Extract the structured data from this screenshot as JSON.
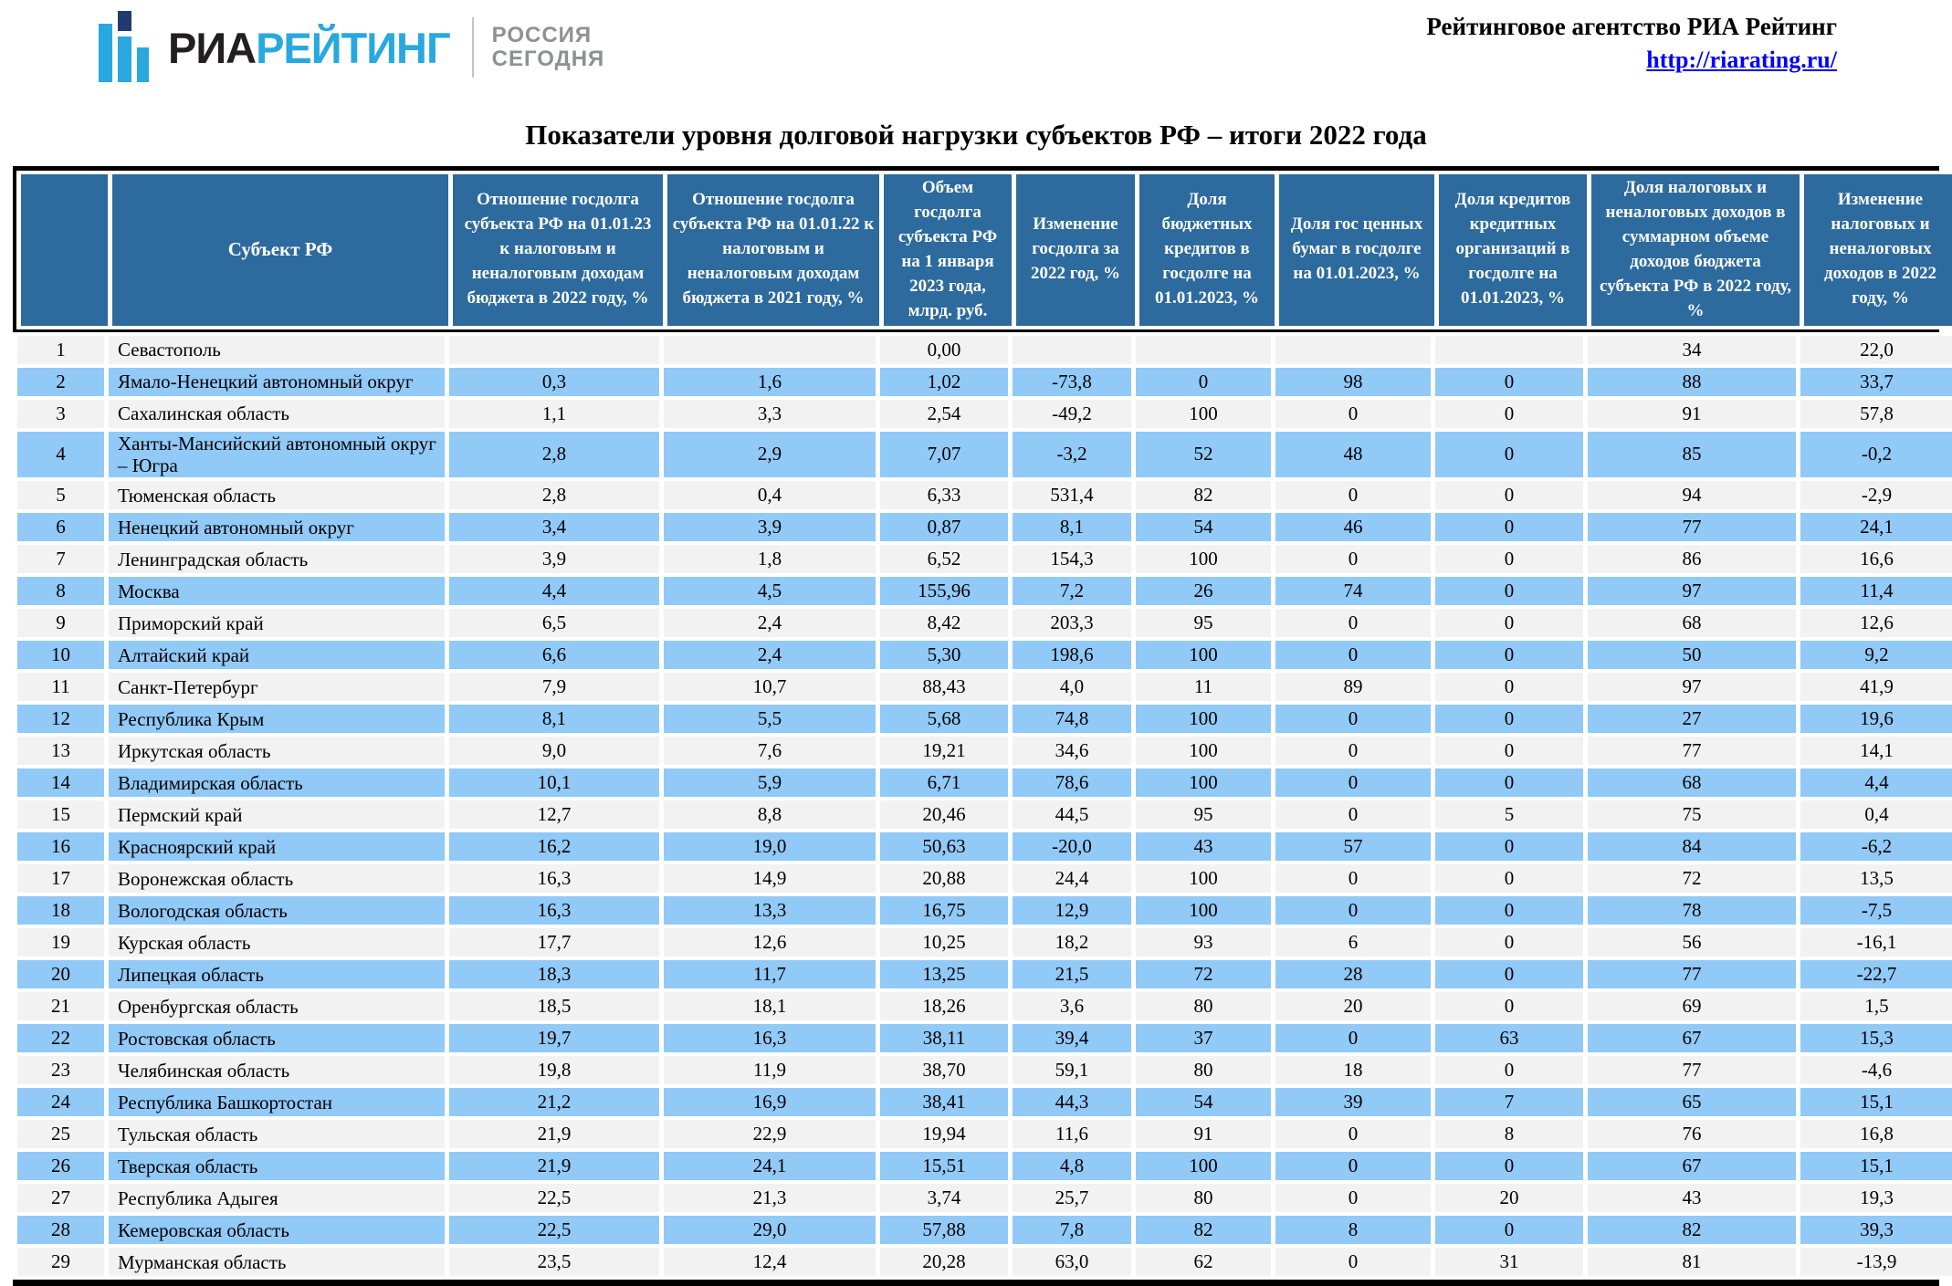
{
  "header": {
    "logo": {
      "ria": "РИА",
      "rating": "РЕЙТИНГ",
      "russia_line1": "РОССИЯ",
      "russia_line2": "СЕГОДНЯ"
    },
    "agency_name": "Рейтинговое агентство РИА Рейтинг",
    "agency_url": "http://riarating.ru/"
  },
  "title": "Показатели уровня долговой нагрузки субъектов РФ – итоги 2022 года",
  "colors": {
    "header_bg": "#2d6a9d",
    "row_highlight": "#91c9f7",
    "row_alt": "#f2f2f2",
    "logo_blue": "#29a8e0",
    "logo_dark": "#1f3b70",
    "link_blue": "#0000ff"
  },
  "table": {
    "columns": [
      "",
      "Субъект РФ",
      "Отношение госдолга субъекта РФ на 01.01.23 к налоговым и неналоговым доходам бюджета в 2022 году, %",
      "Отношение госдолга субъекта РФ на 01.01.22 к налоговым и неналоговым доходам бюджета в 2021 году, %",
      "Объем госдолга субъекта РФ на 1 января 2023 года, млрд. руб.",
      "Изменение госдолга за 2022 год, %",
      "Доля бюджетных кредитов в госдолге на 01.01.2023, %",
      "Доля гос ценных бумаг в госдолге на 01.01.2023, %",
      "Доля кредитов кредитных организаций в госдолге на 01.01.2023, %",
      "Доля налоговых и неналоговых доходов в суммарном объеме доходов бюджета субъекта РФ в 2022 году, %",
      "Изменение налоговых и неналоговых доходов в 2022 году, %"
    ],
    "rows": [
      {
        "num": "1",
        "name": "Севастополь",
        "highlight": false,
        "values": [
          "",
          "",
          "0,00",
          "",
          "",
          "",
          "",
          "34",
          "22,0"
        ]
      },
      {
        "num": "2",
        "name": "Ямало-Ненецкий автономный округ",
        "highlight": true,
        "values": [
          "0,3",
          "1,6",
          "1,02",
          "-73,8",
          "0",
          "98",
          "0",
          "88",
          "33,7"
        ]
      },
      {
        "num": "3",
        "name": "Сахалинская область",
        "highlight": false,
        "values": [
          "1,1",
          "3,3",
          "2,54",
          "-49,2",
          "100",
          "0",
          "0",
          "91",
          "57,8"
        ]
      },
      {
        "num": "4",
        "name": "Ханты-Мансийский автономный округ – Югра",
        "highlight": true,
        "values": [
          "2,8",
          "2,9",
          "7,07",
          "-3,2",
          "52",
          "48",
          "0",
          "85",
          "-0,2"
        ]
      },
      {
        "num": "5",
        "name": "Тюменская область",
        "highlight": false,
        "values": [
          "2,8",
          "0,4",
          "6,33",
          "531,4",
          "82",
          "0",
          "0",
          "94",
          "-2,9"
        ]
      },
      {
        "num": "6",
        "name": "Ненецкий автономный округ",
        "highlight": true,
        "values": [
          "3,4",
          "3,9",
          "0,87",
          "8,1",
          "54",
          "46",
          "0",
          "77",
          "24,1"
        ]
      },
      {
        "num": "7",
        "name": "Ленинградская область",
        "highlight": false,
        "values": [
          "3,9",
          "1,8",
          "6,52",
          "154,3",
          "100",
          "0",
          "0",
          "86",
          "16,6"
        ]
      },
      {
        "num": "8",
        "name": "Москва",
        "highlight": true,
        "values": [
          "4,4",
          "4,5",
          "155,96",
          "7,2",
          "26",
          "74",
          "0",
          "97",
          "11,4"
        ]
      },
      {
        "num": "9",
        "name": "Приморский край",
        "highlight": false,
        "values": [
          "6,5",
          "2,4",
          "8,42",
          "203,3",
          "95",
          "0",
          "0",
          "68",
          "12,6"
        ]
      },
      {
        "num": "10",
        "name": "Алтайский край",
        "highlight": true,
        "values": [
          "6,6",
          "2,4",
          "5,30",
          "198,6",
          "100",
          "0",
          "0",
          "50",
          "9,2"
        ]
      },
      {
        "num": "11",
        "name": "Санкт-Петербург",
        "highlight": false,
        "values": [
          "7,9",
          "10,7",
          "88,43",
          "4,0",
          "11",
          "89",
          "0",
          "97",
          "41,9"
        ]
      },
      {
        "num": "12",
        "name": "Республика Крым",
        "highlight": true,
        "values": [
          "8,1",
          "5,5",
          "5,68",
          "74,8",
          "100",
          "0",
          "0",
          "27",
          "19,6"
        ]
      },
      {
        "num": "13",
        "name": "Иркутская область",
        "highlight": false,
        "values": [
          "9,0",
          "7,6",
          "19,21",
          "34,6",
          "100",
          "0",
          "0",
          "77",
          "14,1"
        ]
      },
      {
        "num": "14",
        "name": "Владимирская область",
        "highlight": true,
        "values": [
          "10,1",
          "5,9",
          "6,71",
          "78,6",
          "100",
          "0",
          "0",
          "68",
          "4,4"
        ]
      },
      {
        "num": "15",
        "name": "Пермский край",
        "highlight": false,
        "values": [
          "12,7",
          "8,8",
          "20,46",
          "44,5",
          "95",
          "0",
          "5",
          "75",
          "0,4"
        ]
      },
      {
        "num": "16",
        "name": "Красноярский край",
        "highlight": true,
        "values": [
          "16,2",
          "19,0",
          "50,63",
          "-20,0",
          "43",
          "57",
          "0",
          "84",
          "-6,2"
        ]
      },
      {
        "num": "17",
        "name": "Воронежская область",
        "highlight": false,
        "values": [
          "16,3",
          "14,9",
          "20,88",
          "24,4",
          "100",
          "0",
          "0",
          "72",
          "13,5"
        ]
      },
      {
        "num": "18",
        "name": "Вологодская область",
        "highlight": true,
        "values": [
          "16,3",
          "13,3",
          "16,75",
          "12,9",
          "100",
          "0",
          "0",
          "78",
          "-7,5"
        ]
      },
      {
        "num": "19",
        "name": "Курская область",
        "highlight": false,
        "values": [
          "17,7",
          "12,6",
          "10,25",
          "18,2",
          "93",
          "6",
          "0",
          "56",
          "-16,1"
        ]
      },
      {
        "num": "20",
        "name": "Липецкая область",
        "highlight": true,
        "values": [
          "18,3",
          "11,7",
          "13,25",
          "21,5",
          "72",
          "28",
          "0",
          "77",
          "-22,7"
        ]
      },
      {
        "num": "21",
        "name": "Оренбургская область",
        "highlight": false,
        "values": [
          "18,5",
          "18,1",
          "18,26",
          "3,6",
          "80",
          "20",
          "0",
          "69",
          "1,5"
        ]
      },
      {
        "num": "22",
        "name": "Ростовская область",
        "highlight": true,
        "values": [
          "19,7",
          "16,3",
          "38,11",
          "39,4",
          "37",
          "0",
          "63",
          "67",
          "15,3"
        ]
      },
      {
        "num": "23",
        "name": "Челябинская область",
        "highlight": false,
        "values": [
          "19,8",
          "11,9",
          "38,70",
          "59,1",
          "80",
          "18",
          "0",
          "77",
          "-4,6"
        ]
      },
      {
        "num": "24",
        "name": "Республика Башкортостан",
        "highlight": true,
        "values": [
          "21,2",
          "16,9",
          "38,41",
          "44,3",
          "54",
          "39",
          "7",
          "65",
          "15,1"
        ]
      },
      {
        "num": "25",
        "name": "Тульская область",
        "highlight": false,
        "values": [
          "21,9",
          "22,9",
          "19,94",
          "11,6",
          "91",
          "0",
          "8",
          "76",
          "16,8"
        ]
      },
      {
        "num": "26",
        "name": "Тверская область",
        "highlight": true,
        "values": [
          "21,9",
          "24,1",
          "15,51",
          "4,8",
          "100",
          "0",
          "0",
          "67",
          "15,1"
        ]
      },
      {
        "num": "27",
        "name": "Республика Адыгея",
        "highlight": false,
        "values": [
          "22,5",
          "21,3",
          "3,74",
          "25,7",
          "80",
          "0",
          "20",
          "43",
          "19,3"
        ]
      },
      {
        "num": "28",
        "name": "Кемеровская область",
        "highlight": true,
        "values": [
          "22,5",
          "29,0",
          "57,88",
          "7,8",
          "82",
          "8",
          "0",
          "82",
          "39,3"
        ]
      },
      {
        "num": "29",
        "name": "Мурманская область",
        "highlight": false,
        "values": [
          "23,5",
          "12,4",
          "20,28",
          "63,0",
          "62",
          "0",
          "31",
          "81",
          "-13,9"
        ]
      }
    ]
  }
}
